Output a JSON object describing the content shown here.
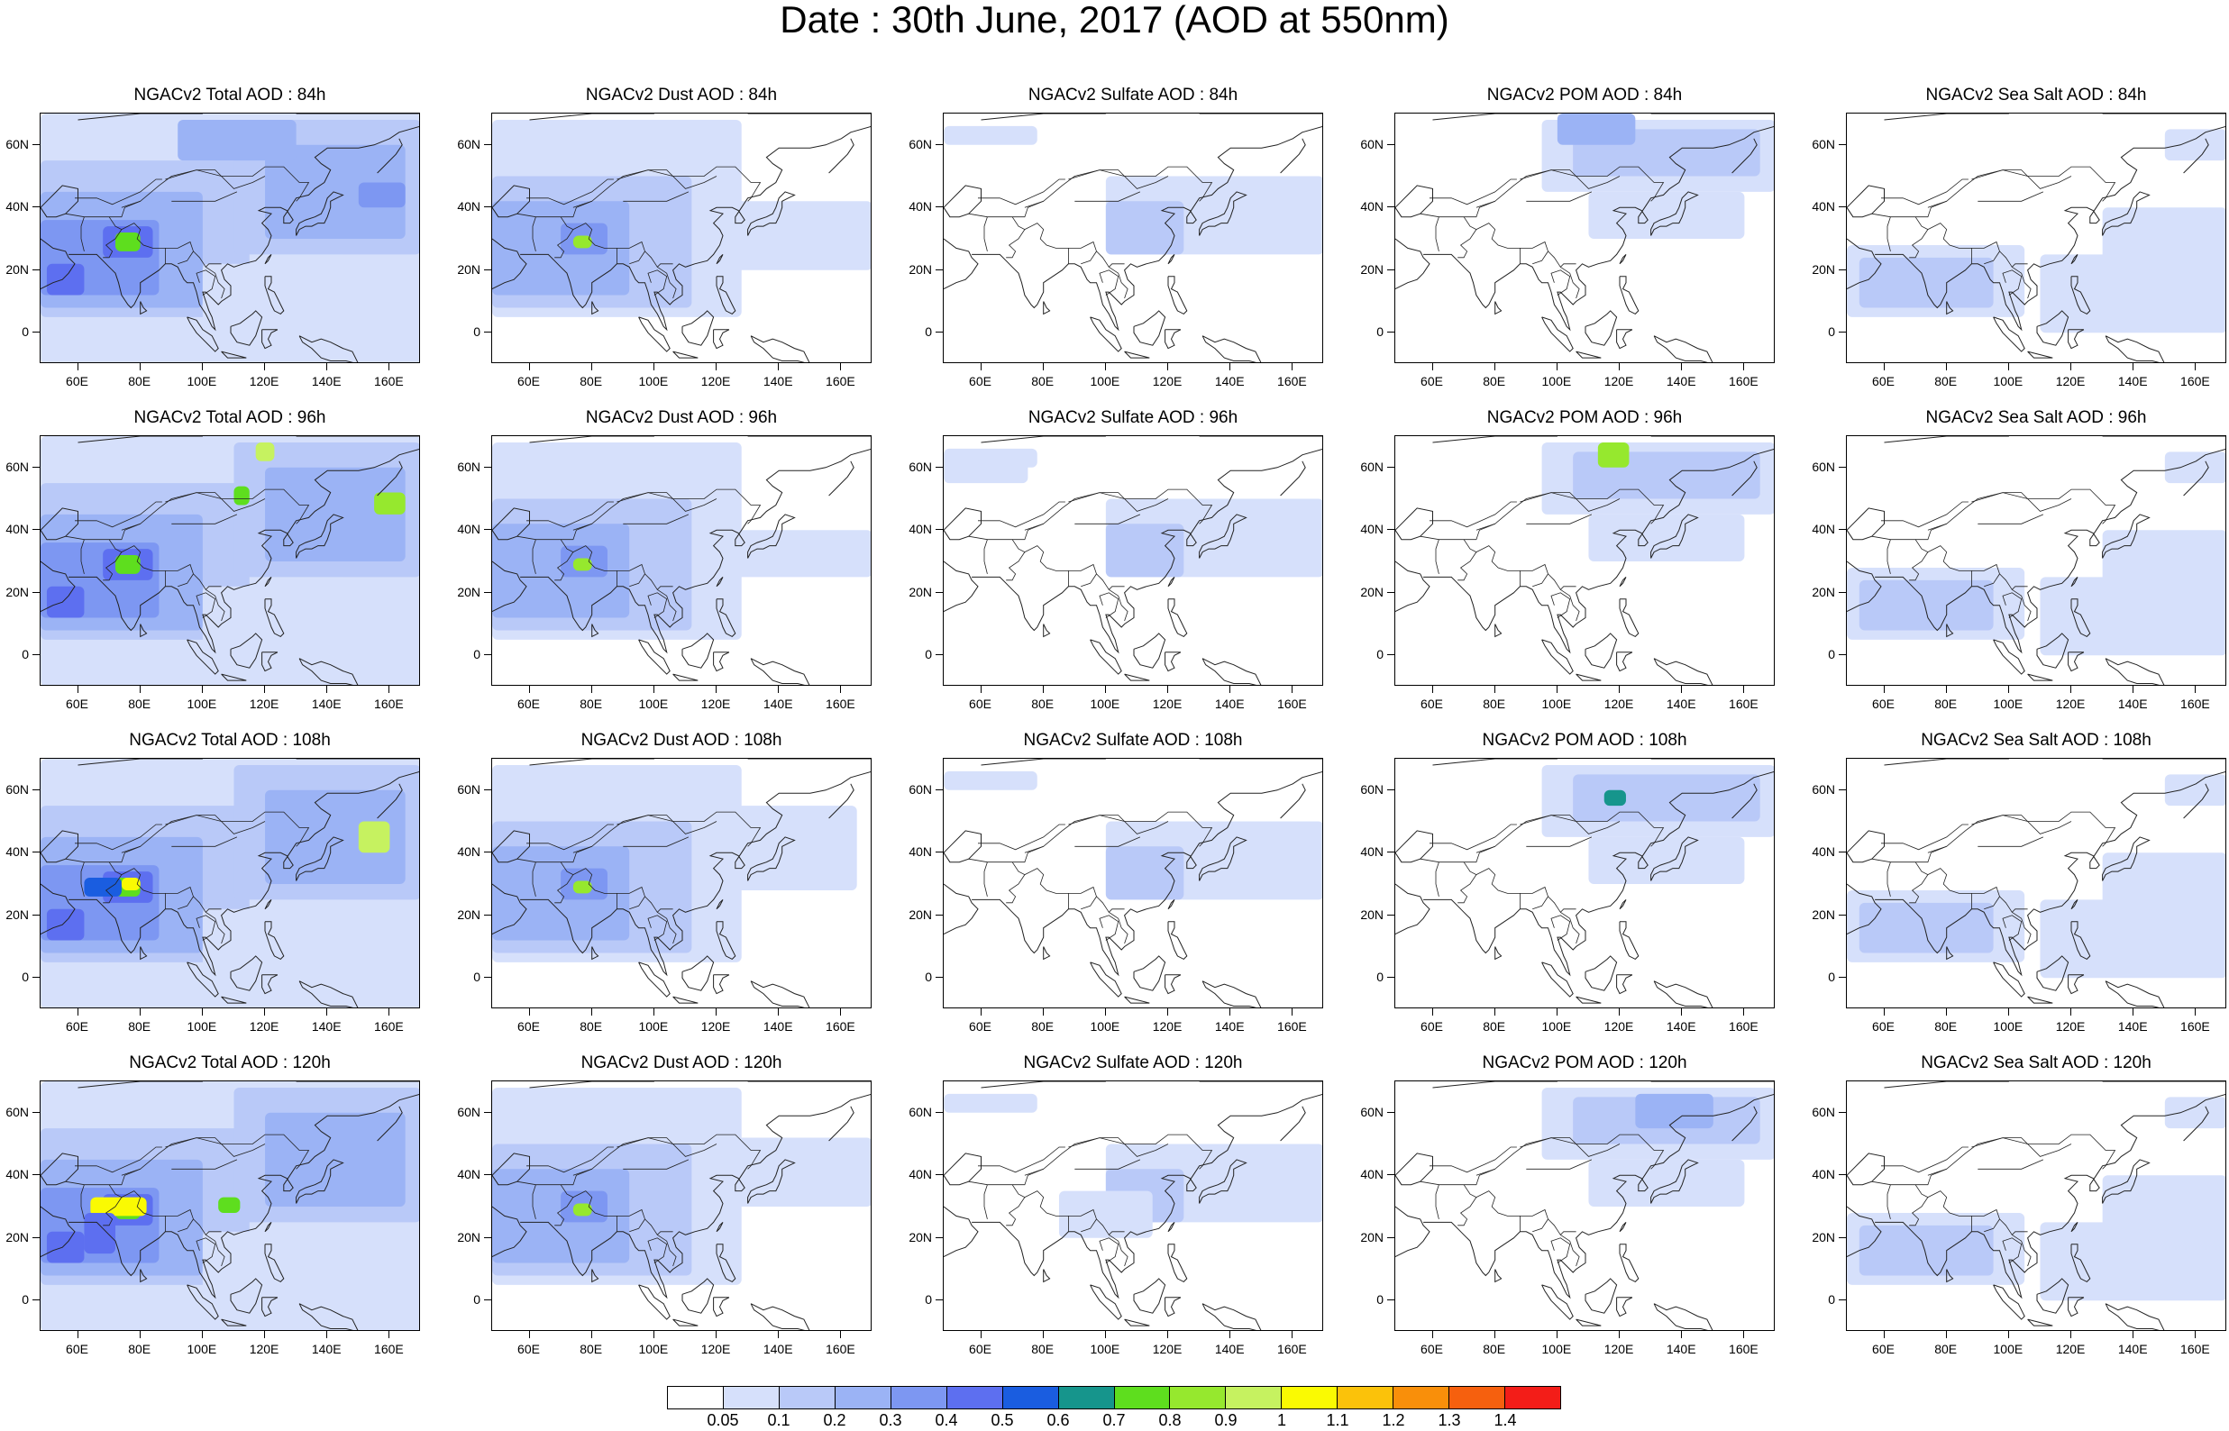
{
  "title": "Date : 30th June, 2017 (AOD at 550nm)",
  "panels": [
    {
      "title": "NGACv2 Total AOD : 84h",
      "species": "total",
      "forecast_hour": 84
    },
    {
      "title": "NGACv2 Dust AOD : 84h",
      "species": "dust",
      "forecast_hour": 84
    },
    {
      "title": "NGACv2 Sulfate AOD : 84h",
      "species": "sulfate",
      "forecast_hour": 84
    },
    {
      "title": "NGACv2 POM AOD : 84h",
      "species": "pom",
      "forecast_hour": 84
    },
    {
      "title": "NGACv2 Sea Salt AOD : 84h",
      "species": "seasalt",
      "forecast_hour": 84
    },
    {
      "title": "NGACv2 Total AOD : 96h",
      "species": "total",
      "forecast_hour": 96
    },
    {
      "title": "NGACv2 Dust AOD : 96h",
      "species": "dust",
      "forecast_hour": 96
    },
    {
      "title": "NGACv2 Sulfate AOD : 96h",
      "species": "sulfate",
      "forecast_hour": 96
    },
    {
      "title": "NGACv2 POM AOD : 96h",
      "species": "pom",
      "forecast_hour": 96
    },
    {
      "title": "NGACv2 Sea Salt AOD : 96h",
      "species": "seasalt",
      "forecast_hour": 96
    },
    {
      "title": "NGACv2 Total AOD : 108h",
      "species": "total",
      "forecast_hour": 108
    },
    {
      "title": "NGACv2 Dust AOD : 108h",
      "species": "dust",
      "forecast_hour": 108
    },
    {
      "title": "NGACv2 Sulfate AOD : 108h",
      "species": "sulfate",
      "forecast_hour": 108
    },
    {
      "title": "NGACv2 POM AOD : 108h",
      "species": "pom",
      "forecast_hour": 108
    },
    {
      "title": "NGACv2 Sea Salt AOD : 108h",
      "species": "seasalt",
      "forecast_hour": 108
    },
    {
      "title": "NGACv2 Total AOD : 120h",
      "species": "total",
      "forecast_hour": 120
    },
    {
      "title": "NGACv2 Dust AOD : 120h",
      "species": "dust",
      "forecast_hour": 120
    },
    {
      "title": "NGACv2 Sulfate AOD : 120h",
      "species": "sulfate",
      "forecast_hour": 120
    },
    {
      "title": "NGACv2 POM AOD : 120h",
      "species": "pom",
      "forecast_hour": 120
    },
    {
      "title": "NGACv2 Sea Salt  AOD : 120h",
      "species": "seasalt",
      "forecast_hour": 120
    }
  ],
  "map_axes": {
    "lon_range": [
      48,
      170
    ],
    "lat_range": [
      -10,
      70
    ],
    "lon_ticks": [
      "60E",
      "80E",
      "100E",
      "120E",
      "140E",
      "160E"
    ],
    "lon_tick_values": [
      60,
      80,
      100,
      120,
      140,
      160
    ],
    "lat_ticks": [
      "60N",
      "40N",
      "20N",
      "0"
    ],
    "lat_tick_values": [
      60,
      40,
      20,
      0
    ]
  },
  "colorbar": {
    "labels": [
      "0.05",
      "0.1",
      "0.2",
      "0.3",
      "0.4",
      "0.5",
      "0.6",
      "0.7",
      "0.8",
      "0.9",
      "1",
      "1.1",
      "1.2",
      "1.3",
      "1.4"
    ],
    "colors": [
      "#ffffff",
      "#d6e0fb",
      "#b9c9f8",
      "#9bb3f5",
      "#7d97f2",
      "#5d6ff0",
      "#1a5de0",
      "#16958c",
      "#5ede1e",
      "#96e82e",
      "#c6f260",
      "#fafa02",
      "#fbc20a",
      "#f98f0a",
      "#f6600e",
      "#f31d18"
    ]
  }
}
